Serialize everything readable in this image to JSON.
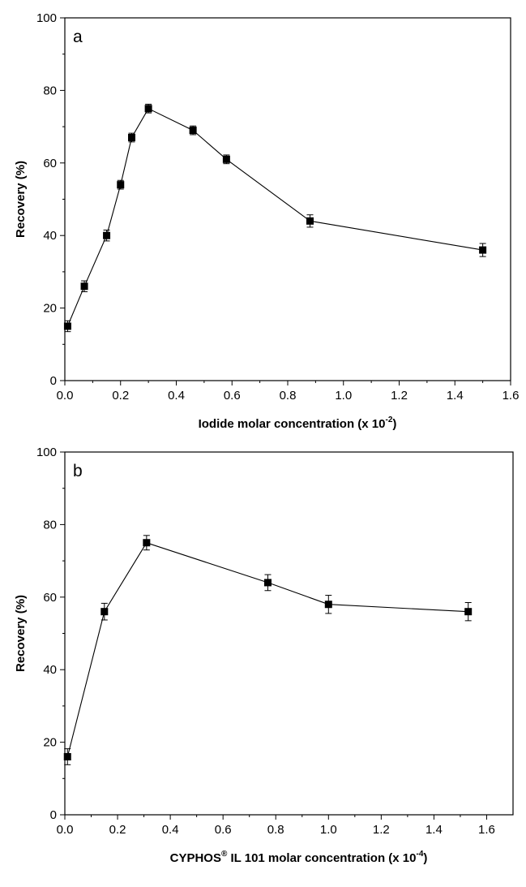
{
  "chart_data": [
    {
      "type": "line",
      "panel_label": "a",
      "xlabel": "Iodide molar concentration (x 10",
      "xlabel_sup": "-2",
      "xlabel_end": ")",
      "ylabel": "Recovery (%)",
      "xlim": [
        0,
        1.6
      ],
      "ylim": [
        0,
        100
      ],
      "xticks": [
        "0.0",
        "0.2",
        "0.4",
        "0.6",
        "0.8",
        "1.0",
        "1.2",
        "1.4",
        "1.6"
      ],
      "yticks": [
        "0",
        "20",
        "40",
        "60",
        "80",
        "100"
      ],
      "series": [
        {
          "x": [
            0.01,
            0.07,
            0.15,
            0.2,
            0.24,
            0.3,
            0.46,
            0.58,
            0.88,
            1.5
          ],
          "y": [
            15,
            26,
            40,
            54,
            67,
            75,
            69,
            61,
            44,
            36
          ],
          "err": [
            1.5,
            1.5,
            1.5,
            1.2,
            1.2,
            1.2,
            1.2,
            1.2,
            1.7,
            1.8
          ]
        }
      ]
    },
    {
      "type": "line",
      "panel_label": "b",
      "xlabel": "CYPHOS",
      "xlabel_sup_mark": "®",
      "xlabel_mid": " IL 101 molar concentration (x 10",
      "xlabel_sup": "-4",
      "xlabel_end": ")",
      "ylabel": "Recovery (%)",
      "xlim": [
        0,
        1.7
      ],
      "ylim": [
        0,
        100
      ],
      "xticks": [
        "0.0",
        "0.2",
        "0.4",
        "0.6",
        "0.8",
        "1.0",
        "1.2",
        "1.4",
        "1.6"
      ],
      "yticks": [
        "0",
        "20",
        "40",
        "60",
        "80",
        "100"
      ],
      "series": [
        {
          "x": [
            0.01,
            0.15,
            0.31,
            0.77,
            1.0,
            1.53
          ],
          "y": [
            16,
            56,
            75,
            64,
            58,
            56
          ],
          "err": [
            2.2,
            2.3,
            2.0,
            2.2,
            2.5,
            2.5
          ]
        }
      ]
    }
  ]
}
